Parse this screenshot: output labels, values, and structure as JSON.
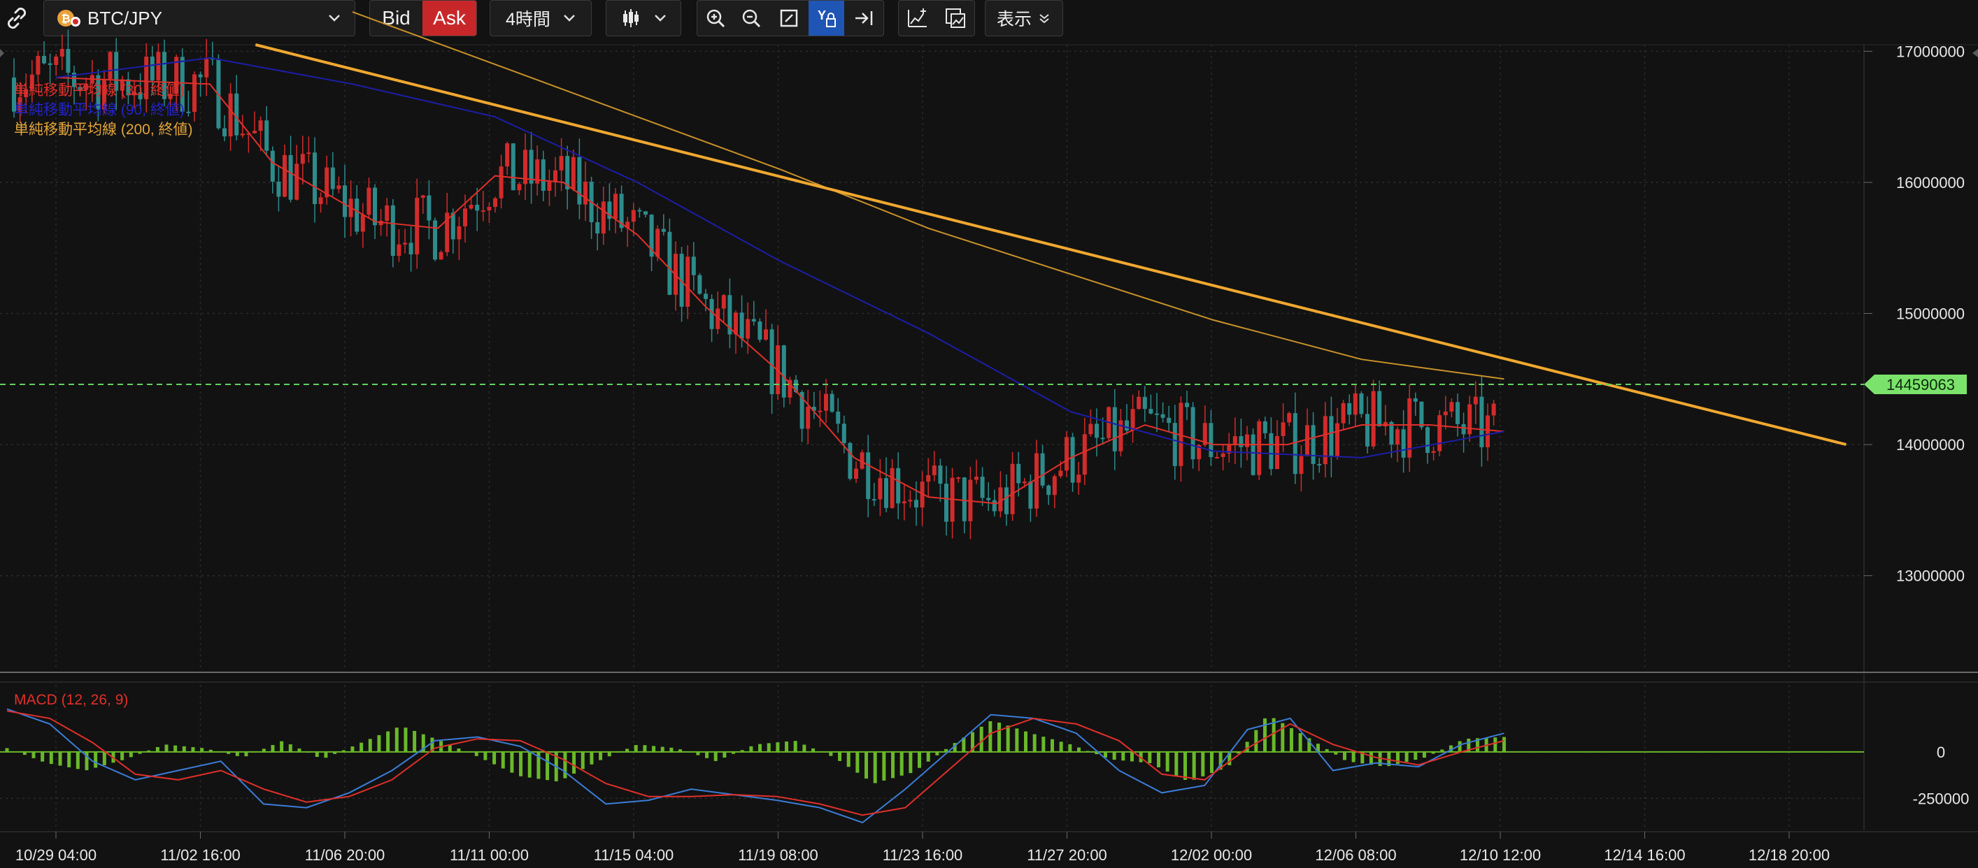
{
  "toolbar": {
    "symbol": "BTC/JPY",
    "bid_label": "Bid",
    "ask_label": "Ask",
    "timeframe": "4時間",
    "display_label": "表示"
  },
  "colors": {
    "background": "#121212",
    "bull": "#2e8b8b",
    "bear": "#d22b2b",
    "sma30": "#e0302a",
    "sma90": "#1d1da8",
    "sma200": "#c9922a",
    "trendline": "#f0a830",
    "price_line": "#5fd35f",
    "macd_hist": "#6ab82a",
    "macd_line": "#3b7dd8",
    "signal_line": "#e0302a",
    "ask_bg": "#c8272a",
    "active_tool": "#1f55b4"
  },
  "icons": [
    "link-icon",
    "bitcoin-icon",
    "chevron-down-icon",
    "candlestick-icon",
    "zoom-in-icon",
    "zoom-out-icon",
    "fit-icon",
    "y-lock-icon",
    "scroll-end-icon",
    "add-indicator-icon",
    "chart-image-icon"
  ],
  "legend": {
    "sma30": "単純移動平均線 (30, 終値)",
    "sma90": "単純移動平均線 (90, 終値)",
    "sma200": "単純移動平均線 (200, 終値)",
    "macd": "MACD (12, 26, 9)"
  },
  "current_price": "14459063",
  "chart_data": [
    {
      "type": "candlestick",
      "title": "BTC/JPY",
      "x_tick_labels": [
        "10/29 04:00",
        "11/02 16:00",
        "11/06 20:00",
        "11/11 00:00",
        "11/15 04:00",
        "11/19 08:00",
        "11/23 16:00",
        "11/27 20:00",
        "12/02 00:00",
        "12/06 08:00",
        "12/10 12:00",
        "12/14 16:00",
        "12/18 20:00"
      ],
      "y_tick_labels": [
        "17000000",
        "16000000",
        "15000000",
        "14000000",
        "13000000"
      ],
      "ylim": [
        12300000,
        17050000
      ],
      "current_price": 14459063,
      "series": [
        {
          "name": "単純移動平均線 (30, 終値)",
          "points": [
            [
              "10/29 04:00",
              16800000
            ],
            [
              "11/02 16:00",
              16750000
            ],
            [
              "11/04 12:00",
              16150000
            ],
            [
              "11/07 12:00",
              15700000
            ],
            [
              "11/09 08:00",
              15650000
            ],
            [
              "11/11 00:00",
              16050000
            ],
            [
              "11/13 00:00",
              16000000
            ],
            [
              "11/15 04:00",
              15600000
            ],
            [
              "11/17 04:00",
              15050000
            ],
            [
              "11/19 08:00",
              14550000
            ],
            [
              "11/21 12:00",
              13900000
            ],
            [
              "11/23 16:00",
              13600000
            ],
            [
              "11/25 16:00",
              13550000
            ],
            [
              "11/27 20:00",
              13900000
            ],
            [
              "11/30 00:00",
              14150000
            ],
            [
              "12/02 00:00",
              14000000
            ],
            [
              "12/04 04:00",
              14000000
            ],
            [
              "12/06 08:00",
              14150000
            ],
            [
              "12/08 08:00",
              14150000
            ],
            [
              "12/10 12:00",
              14100000
            ]
          ]
        },
        {
          "name": "単純移動平均線 (90, 終値)",
          "points": [
            [
              "10/29 04:00",
              16800000
            ],
            [
              "11/02 16:00",
              16950000
            ],
            [
              "11/06 20:00",
              16750000
            ],
            [
              "11/11 00:00",
              16500000
            ],
            [
              "11/15 04:00",
              16000000
            ],
            [
              "11/19 08:00",
              15400000
            ],
            [
              "11/23 16:00",
              14850000
            ],
            [
              "11/27 20:00",
              14250000
            ],
            [
              "12/02 00:00",
              13950000
            ],
            [
              "12/06 08:00",
              13900000
            ],
            [
              "12/10 12:00",
              14100000
            ]
          ]
        },
        {
          "name": "単純移動平均線 (200, 終値)",
          "points": [
            [
              "11/06 20:00",
              17300000
            ],
            [
              "11/11 00:00",
              16900000
            ],
            [
              "11/15 04:00",
              16500000
            ],
            [
              "11/19 08:00",
              16100000
            ],
            [
              "11/23 16:00",
              15650000
            ],
            [
              "11/27 20:00",
              15300000
            ],
            [
              "12/02 00:00",
              14950000
            ],
            [
              "12/06 08:00",
              14650000
            ],
            [
              "12/10 12:00",
              14500000
            ]
          ]
        },
        {
          "name": "trendline",
          "points": [
            [
              "11/04 00:00",
              17050000
            ],
            [
              "12/20 12:00",
              14000000
            ]
          ]
        }
      ]
    },
    {
      "type": "bar",
      "title": "MACD (12, 26, 9)",
      "y_tick_labels": [
        "0",
        "-250000"
      ],
      "ylim": [
        -410000,
        360000
      ],
      "series": [
        {
          "name": "histogram",
          "values": [
            20000,
            -60000,
            -100000,
            -40000,
            40000,
            20000,
            -30000,
            60000,
            -40000,
            50000,
            140000,
            60000,
            -30000,
            -130000,
            -160000,
            -50000,
            40000,
            20000,
            -50000,
            40000,
            60000,
            -30000,
            -170000,
            -110000,
            40000,
            170000,
            100000,
            40000,
            -40000,
            -60000,
            -160000,
            -80000,
            200000,
            80000,
            -50000,
            -80000,
            -30000,
            70000,
            80000
          ]
        },
        {
          "name": "MACD",
          "values": [
            230000,
            150000,
            -50000,
            -150000,
            -100000,
            -50000,
            -280000,
            -300000,
            -220000,
            -100000,
            60000,
            80000,
            30000,
            -100000,
            -280000,
            -260000,
            -200000,
            -230000,
            -260000,
            -300000,
            -380000,
            -200000,
            0,
            200000,
            180000,
            100000,
            -100000,
            -220000,
            -180000,
            120000,
            180000,
            -100000,
            -60000,
            -80000,
            40000,
            100000
          ]
        },
        {
          "name": "Signal",
          "values": [
            220000,
            180000,
            50000,
            -120000,
            -150000,
            -100000,
            -200000,
            -270000,
            -240000,
            -150000,
            20000,
            70000,
            60000,
            -40000,
            -170000,
            -240000,
            -240000,
            -230000,
            -240000,
            -280000,
            -340000,
            -300000,
            -100000,
            100000,
            180000,
            150000,
            60000,
            -120000,
            -150000,
            20000,
            150000,
            40000,
            -30000,
            -70000,
            0,
            60000
          ]
        }
      ]
    }
  ]
}
